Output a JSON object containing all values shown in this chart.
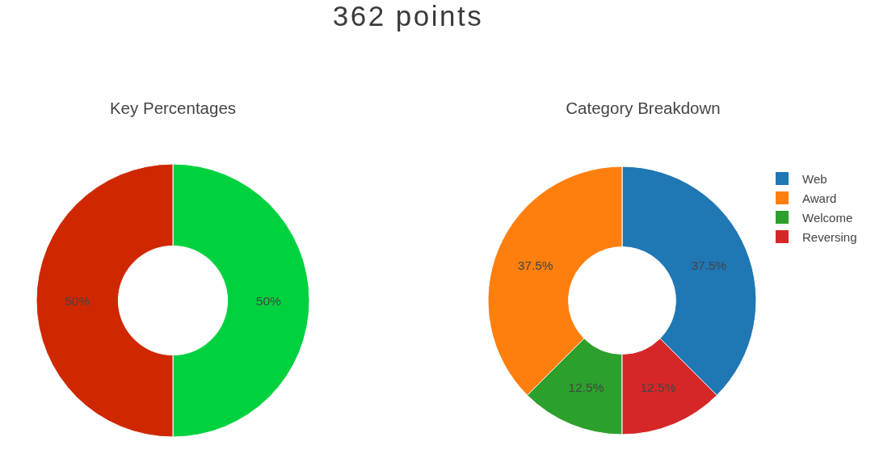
{
  "chart_data": [
    {
      "type": "other",
      "title": "362 points"
    },
    {
      "type": "donut",
      "title": "Key Percentages",
      "categories": [
        null,
        null
      ],
      "values": [
        50,
        50
      ],
      "colors": [
        "#00d13f",
        "#cf2800"
      ],
      "value_labels": [
        "50%",
        "50%"
      ]
    },
    {
      "type": "donut",
      "title": "Category Breakdown",
      "categories": [
        "Web",
        "Award",
        "Welcome",
        "Reversing"
      ],
      "values": [
        37.5,
        37.5,
        12.5,
        12.5
      ],
      "colors": [
        "#1f77b4",
        "#ff7f0e",
        "#2ca02c",
        "#d62728"
      ],
      "value_labels": [
        "37.5%",
        "37.5%",
        "12.5%",
        "12.5%"
      ],
      "legend": "top right"
    }
  ]
}
